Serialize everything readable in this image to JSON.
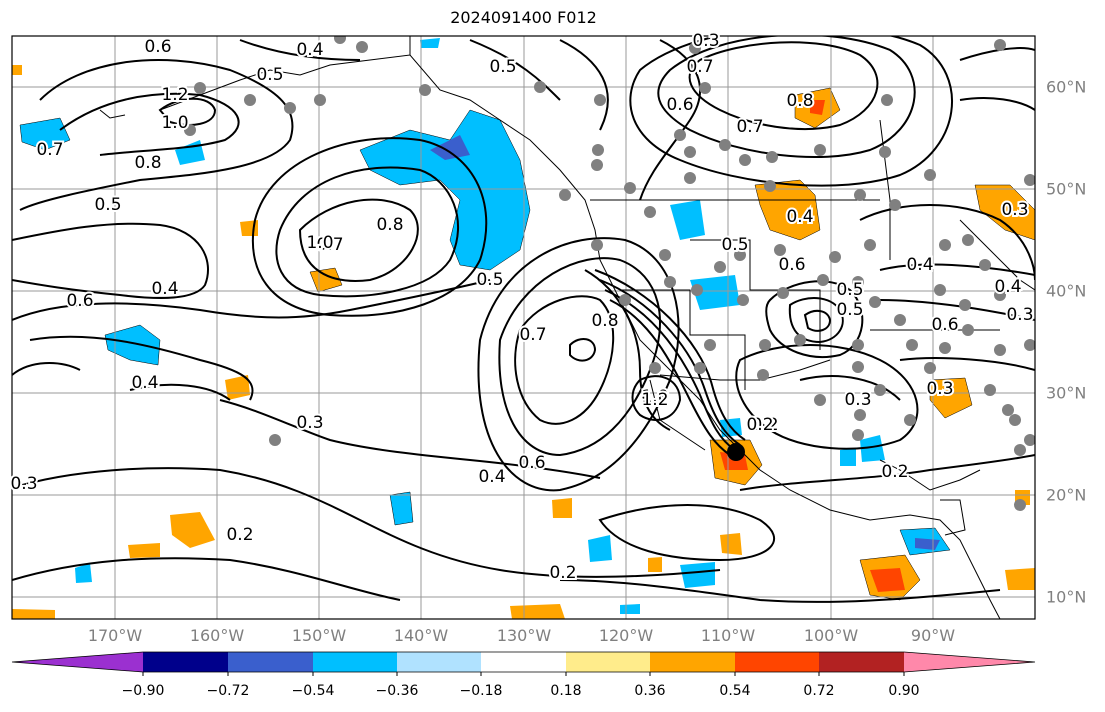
{
  "title": "2024091400 F012",
  "map": {
    "lat_labels": [
      "60°N",
      "50°N",
      "40°N",
      "30°N",
      "20°N",
      "10°N"
    ],
    "lon_labels": [
      "170°W",
      "160°W",
      "150°W",
      "140°W",
      "130°W",
      "120°W",
      "110°W",
      "100°W",
      "90°W"
    ],
    "contour_labels": [
      "0.6",
      "0.5",
      "0.4",
      "0.5",
      "0.3",
      "0.7",
      "0.6",
      "1.2",
      "1.0",
      "0.7",
      "0.8",
      "0.5",
      "0.7",
      "0.8",
      "1.0",
      "0.2",
      "0.4",
      "0.7",
      "1.0",
      "0.8",
      "0.5",
      "0.6",
      "0.8",
      "0.7",
      "0.4",
      "0.6",
      "0.4",
      "0.3",
      "0.5",
      "0.3",
      "1.2",
      "0.6",
      "0.4",
      "0.2",
      "0.2",
      "0.3",
      "0.3",
      "0.5",
      "0.6",
      "0.4",
      "0.4",
      "0.3",
      "0.5",
      "0.2",
      "0.2",
      "0.3"
    ]
  },
  "colorbar": {
    "colors": [
      "#9b30d0",
      "#00008b",
      "#3a5fcd",
      "#00bfff",
      "#b0e2ff",
      "#ffffff",
      "#ffec8b",
      "#ffa500",
      "#ff4500",
      "#b22222",
      "#ff88aa"
    ],
    "tick_labels": [
      "−0.90",
      "−0.72",
      "−0.54",
      "−0.36",
      "−0.18",
      "0.18",
      "0.36",
      "0.54",
      "0.72",
      "0.90"
    ]
  }
}
